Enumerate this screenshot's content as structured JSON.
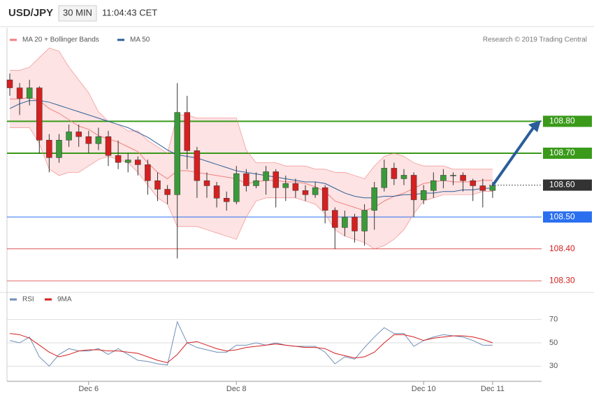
{
  "header": {
    "symbol": "USD/JPY",
    "interval": "30 MIN",
    "time": "11:04:43 CET"
  },
  "chart_data": [
    {
      "type": "candlestick",
      "credit": "Research © 2019 Trading Central",
      "categories": [
        null,
        null,
        null,
        null,
        null,
        null,
        null,
        null,
        "Dec 6",
        null,
        null,
        null,
        null,
        null,
        null,
        null,
        null,
        null,
        null,
        null,
        null,
        null,
        null,
        "Dec 8",
        null,
        null,
        null,
        null,
        null,
        null,
        null,
        null,
        null,
        null,
        null,
        null,
        null,
        null,
        null,
        null,
        null,
        null,
        "Dec 10",
        null,
        null,
        null,
        null,
        null,
        null,
        "Dec 11"
      ],
      "open": [
        108.93,
        108.905,
        108.872,
        108.905,
        108.741,
        108.686,
        108.741,
        108.767,
        108.752,
        108.73,
        108.752,
        108.693,
        108.671,
        108.679,
        108.664,
        108.614,
        108.587,
        108.57,
        108.828,
        108.708,
        108.614,
        108.598,
        108.559,
        108.548,
        108.636,
        108.598,
        108.614,
        108.642,
        108.592,
        108.605,
        108.583,
        108.57,
        108.592,
        108.521,
        108.467,
        108.5,
        108.456,
        108.521,
        108.592,
        108.653,
        108.62,
        108.631,
        108.554,
        108.583,
        108.614,
        108.631,
        108.631,
        108.614,
        108.598,
        108.583
      ],
      "high": [
        108.95,
        108.92,
        108.93,
        108.91,
        108.76,
        108.76,
        108.79,
        108.79,
        108.77,
        108.78,
        108.77,
        108.74,
        108.7,
        108.69,
        108.68,
        108.64,
        108.6,
        108.92,
        108.88,
        108.72,
        108.64,
        108.61,
        108.58,
        108.66,
        108.65,
        108.64,
        108.66,
        108.65,
        108.63,
        108.62,
        108.6,
        108.61,
        108.6,
        108.53,
        108.52,
        108.51,
        108.54,
        108.61,
        108.68,
        108.67,
        108.65,
        108.64,
        108.6,
        108.64,
        108.65,
        108.64,
        108.64,
        108.62,
        108.62,
        108.61
      ],
      "low": [
        108.88,
        108.82,
        108.85,
        108.7,
        108.64,
        108.67,
        108.72,
        108.72,
        108.7,
        108.71,
        108.66,
        108.65,
        108.64,
        108.63,
        108.57,
        108.55,
        108.54,
        108.37,
        108.65,
        108.56,
        108.56,
        108.53,
        108.52,
        108.54,
        108.58,
        108.59,
        108.57,
        108.53,
        108.55,
        108.56,
        108.55,
        108.56,
        108.48,
        108.4,
        108.44,
        108.42,
        108.41,
        108.46,
        108.58,
        108.6,
        108.6,
        108.5,
        108.54,
        108.56,
        108.59,
        108.6,
        108.58,
        108.55,
        108.53,
        108.56
      ],
      "close": [
        108.905,
        108.872,
        108.905,
        108.741,
        108.686,
        108.741,
        108.767,
        108.752,
        108.73,
        108.752,
        108.693,
        108.671,
        108.679,
        108.664,
        108.614,
        108.587,
        108.57,
        108.828,
        108.708,
        108.614,
        108.598,
        108.559,
        108.548,
        108.636,
        108.598,
        108.614,
        108.642,
        108.592,
        108.605,
        108.583,
        108.57,
        108.592,
        108.521,
        108.467,
        108.5,
        108.456,
        108.521,
        108.592,
        108.653,
        108.62,
        108.631,
        108.554,
        108.583,
        108.614,
        108.631,
        108.631,
        108.614,
        108.598,
        108.583,
        108.598
      ],
      "up_color": "#3a9a3a",
      "down_color": "#d42020",
      "overlays": [
        {
          "name": "MA 20 + Bollinger Bands",
          "color": "#f08080",
          "band_color": "#fde3e3",
          "upper": [
            108.96,
            108.96,
            108.97,
            109.0,
            109.03,
            109.02,
            108.97,
            108.93,
            108.89,
            108.83,
            108.8,
            108.79,
            108.77,
            108.77,
            108.74,
            108.72,
            108.7,
            108.82,
            108.82,
            108.81,
            108.81,
            108.81,
            108.81,
            108.81,
            108.71,
            108.67,
            108.67,
            108.67,
            108.66,
            108.66,
            108.66,
            108.65,
            108.65,
            108.64,
            108.64,
            108.63,
            108.62,
            108.66,
            108.69,
            108.7,
            108.69,
            108.67,
            108.66,
            108.66,
            108.66,
            108.65,
            108.65,
            108.65,
            108.65,
            108.65
          ],
          "values": [
            108.87,
            108.87,
            108.875,
            108.865,
            108.84,
            108.825,
            108.805,
            108.785,
            108.775,
            108.755,
            108.745,
            108.735,
            108.72,
            108.705,
            108.67,
            108.64,
            108.62,
            108.645,
            108.645,
            108.64,
            108.635,
            108.63,
            108.625,
            108.62,
            108.605,
            108.61,
            108.615,
            108.615,
            108.61,
            108.61,
            108.605,
            108.595,
            108.58,
            108.55,
            108.54,
            108.53,
            108.52,
            108.53,
            108.55,
            108.565,
            108.575,
            108.59,
            108.605,
            108.61,
            108.615,
            108.61,
            108.61,
            108.61,
            108.615,
            108.615
          ],
          "lower": [
            108.78,
            108.78,
            108.78,
            108.73,
            108.65,
            108.63,
            108.64,
            108.64,
            108.66,
            108.68,
            108.69,
            108.68,
            108.67,
            108.64,
            108.6,
            108.56,
            108.54,
            108.47,
            108.47,
            108.47,
            108.46,
            108.45,
            108.44,
            108.43,
            108.5,
            108.55,
            108.56,
            108.56,
            108.56,
            108.56,
            108.55,
            108.54,
            108.51,
            108.46,
            108.44,
            108.43,
            108.42,
            108.4,
            108.41,
            108.43,
            108.46,
            108.51,
            108.55,
            108.56,
            108.57,
            108.57,
            108.57,
            108.57,
            108.58,
            108.58
          ]
        },
        {
          "name": "MA 50",
          "color": "#2f5f9a",
          "values": [
            108.84,
            108.855,
            108.865,
            108.865,
            108.86,
            108.85,
            108.84,
            108.83,
            108.82,
            108.81,
            108.8,
            108.79,
            108.78,
            108.765,
            108.75,
            108.73,
            108.71,
            108.695,
            108.69,
            108.685,
            108.675,
            108.665,
            108.655,
            108.645,
            108.64,
            108.635,
            108.63,
            108.625,
            108.62,
            108.615,
            108.61,
            108.61,
            108.605,
            108.59,
            108.575,
            108.565,
            108.56,
            108.56,
            108.565,
            108.565,
            108.57,
            108.57,
            108.575,
            108.575,
            108.58,
            108.58,
            108.585,
            108.585,
            108.59,
            108.59
          ]
        }
      ],
      "ylim": [
        108.27,
        109.04
      ],
      "levels": [
        {
          "value": 108.8,
          "label": "108.80",
          "color": "#3a9a1a",
          "style": "box"
        },
        {
          "value": 108.7,
          "label": "108.70",
          "color": "#3a9a1a",
          "style": "box"
        },
        {
          "value": 108.6,
          "label": "108.60",
          "color": "#333333",
          "style": "current"
        },
        {
          "value": 108.5,
          "label": "108.50",
          "color": "#2a6ff0",
          "style": "box"
        },
        {
          "value": 108.4,
          "label": "108.40",
          "color": "#d42020",
          "style": "text"
        },
        {
          "value": 108.3,
          "label": "108.30",
          "color": "#d42020",
          "style": "text"
        }
      ]
    },
    {
      "type": "line",
      "series": [
        {
          "name": "RSI",
          "color": "#6f8fb8",
          "values": [
            52,
            50,
            55,
            38,
            30,
            40,
            45,
            43,
            43,
            45,
            40,
            45,
            40,
            35,
            34,
            32,
            31,
            68,
            50,
            46,
            44,
            42,
            42,
            48,
            48,
            50,
            48,
            50,
            48,
            47,
            47,
            47,
            42,
            32,
            38,
            36,
            46,
            55,
            63,
            58,
            58,
            47,
            52,
            55,
            57,
            56,
            55,
            52,
            48,
            48
          ]
        },
        {
          "name": "9MA",
          "color": "#d42020",
          "values": [
            58,
            57,
            54,
            48,
            42,
            38,
            40,
            43,
            44,
            44,
            43,
            43,
            42,
            41,
            38,
            35,
            33,
            40,
            50,
            51,
            48,
            45,
            43,
            44,
            46,
            47,
            48,
            49,
            48,
            47,
            46,
            46,
            45,
            41,
            39,
            37,
            38,
            42,
            50,
            57,
            57,
            55,
            52,
            54,
            55,
            56,
            56,
            55,
            53,
            50
          ]
        }
      ],
      "ylim": [
        20,
        80
      ],
      "yticks": [
        30,
        50,
        70
      ]
    }
  ]
}
